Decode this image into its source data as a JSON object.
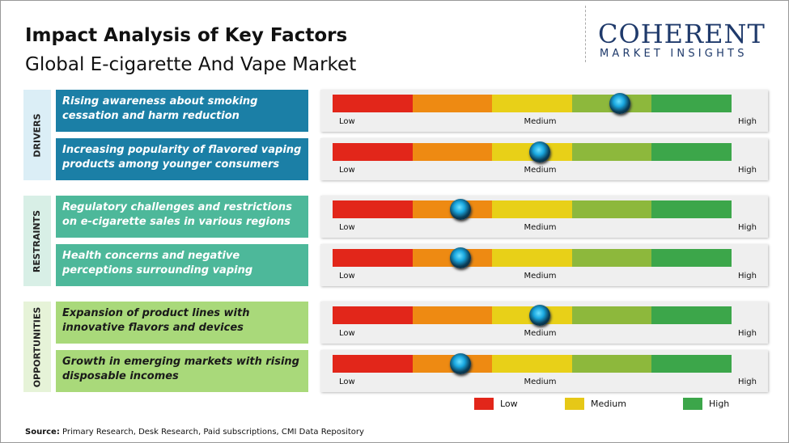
{
  "header": {
    "title": "Impact Analysis of Key Factors",
    "subtitle": "Global E-cigarette And Vape Market"
  },
  "logo": {
    "name": "COHERENT",
    "tagline": "MARKET INSIGHTS"
  },
  "scale": {
    "labels": [
      "Low",
      "Medium",
      "High"
    ],
    "segment_colors": [
      "#e2261a",
      "#ee8a12",
      "#e8d018",
      "#8db83c",
      "#3ca64a"
    ]
  },
  "groups": [
    {
      "label": "DRIVERS",
      "label_bg": "#dbeef6",
      "box_color": "#1b7fa6",
      "text_color": "#ffffff",
      "factors": [
        {
          "text": "Rising awareness about smoking cessation and harm reduction",
          "impact": 3.6
        },
        {
          "text": "Increasing popularity of flavored vaping products among younger consumers",
          "impact": 2.6
        }
      ]
    },
    {
      "label": "RESTRAINTS",
      "label_bg": "#d8efe6",
      "box_color": "#4db89a",
      "text_color": "#ffffff",
      "factors": [
        {
          "text": "Regulatory challenges and restrictions on e-cigarette sales in various regions",
          "impact": 1.6
        },
        {
          "text": "Health concerns and negative perceptions surrounding vaping",
          "impact": 1.6
        }
      ]
    },
    {
      "label": "OPPORTUNITIES",
      "label_bg": "#e6f3d8",
      "box_color": "#a9d97a",
      "text_color": "#1a1a1a",
      "factors": [
        {
          "text": "Expansion of product lines with innovative flavors and devices",
          "impact": 2.6
        },
        {
          "text": "Growth in emerging markets with rising disposable incomes",
          "impact": 1.6
        }
      ]
    }
  ],
  "legend": [
    {
      "label": "Low",
      "color": "#e2261a"
    },
    {
      "label": "Medium",
      "color": "#e6c817"
    },
    {
      "label": "High",
      "color": "#3ca64a"
    }
  ],
  "source": {
    "label": "Source:",
    "text": "Primary Research, Desk Research, Paid subscriptions, CMI Data Repository"
  }
}
